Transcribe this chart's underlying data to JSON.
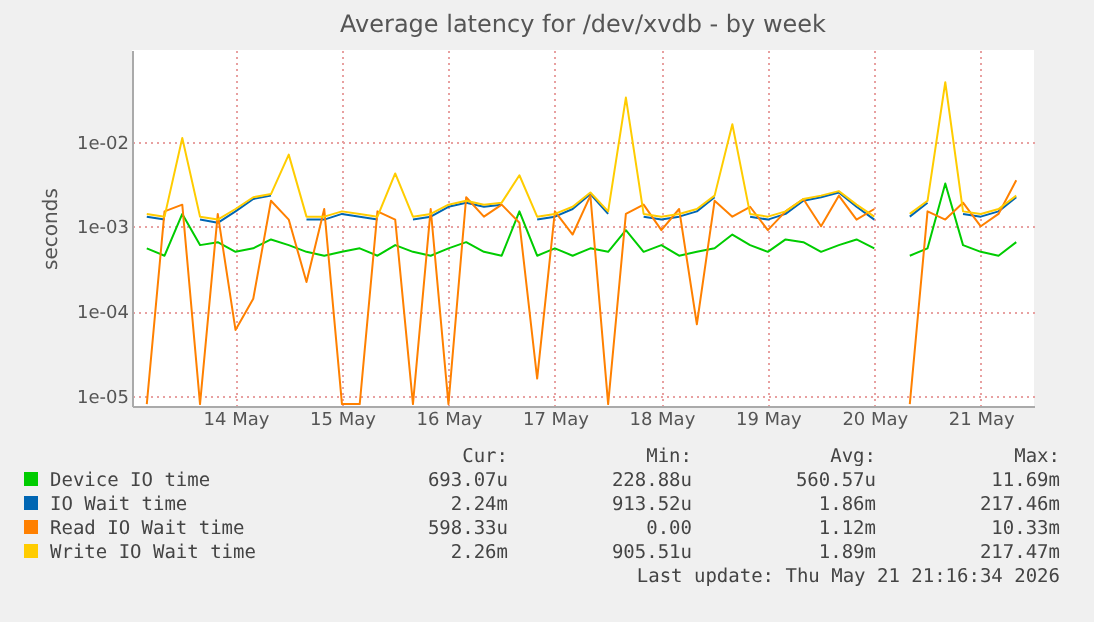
{
  "chart_data": {
    "type": "line",
    "title": "Average latency for /dev/xvdb - by week",
    "ylabel": "seconds",
    "log": "y",
    "grid": true,
    "legend": "bottom",
    "x": [
      "2026-05-13T16:00",
      "2026-05-13T20:00",
      "2026-05-14T00:00",
      "2026-05-14T04:00",
      "2026-05-14T08:00",
      "2026-05-14T12:00",
      "2026-05-14T16:00",
      "2026-05-14T20:00",
      "2026-05-15T00:00",
      "2026-05-15T04:00",
      "2026-05-15T08:00",
      "2026-05-15T12:00",
      "2026-05-15T16:00",
      "2026-05-15T20:00",
      "2026-05-16T00:00",
      "2026-05-16T04:00",
      "2026-05-16T08:00",
      "2026-05-16T12:00",
      "2026-05-16T16:00",
      "2026-05-16T20:00",
      "2026-05-17T00:00",
      "2026-05-17T04:00",
      "2026-05-17T08:00",
      "2026-05-17T12:00",
      "2026-05-17T16:00",
      "2026-05-17T20:00",
      "2026-05-18T00:00",
      "2026-05-18T04:00",
      "2026-05-18T08:00",
      "2026-05-18T12:00",
      "2026-05-18T16:00",
      "2026-05-18T20:00",
      "2026-05-19T00:00",
      "2026-05-19T04:00",
      "2026-05-19T08:00",
      "2026-05-19T12:00",
      "2026-05-19T16:00",
      "2026-05-19T20:00",
      "2026-05-20T00:00",
      "2026-05-20T04:00",
      "2026-05-20T08:00",
      "2026-05-20T12:00",
      "2026-05-20T16:00",
      "2026-05-20T20:00",
      "2026-05-21T00:00",
      "2026-05-21T04:00",
      "2026-05-21T08:00",
      "2026-05-21T12:00",
      "2026-05-21T16:00",
      "2026-05-21T20:00"
    ],
    "xlim": [
      "2026-05-13T12:40",
      "2026-05-22T00:00"
    ],
    "xticks": [
      {
        "value": "2026-05-14T12:00",
        "label": "14 May"
      },
      {
        "value": "2026-05-15T12:00",
        "label": "15 May"
      },
      {
        "value": "2026-05-16T12:00",
        "label": "16 May"
      },
      {
        "value": "2026-05-17T12:00",
        "label": "17 May"
      },
      {
        "value": "2026-05-18T12:00",
        "label": "18 May"
      },
      {
        "value": "2026-05-19T12:00",
        "label": "19 May"
      },
      {
        "value": "2026-05-20T12:00",
        "label": "20 May"
      },
      {
        "value": "2026-05-21T12:00",
        "label": "21 May"
      }
    ],
    "ylim": [
      7.6e-06,
      0.12
    ],
    "yticks": [
      {
        "value": 1e-05,
        "label": "1e-05"
      },
      {
        "value": 0.0001,
        "label": "1e-04"
      },
      {
        "value": 0.001,
        "label": "1e-03"
      },
      {
        "value": 0.01,
        "label": "1e-02"
      }
    ],
    "series": [
      {
        "name": "Device IO time",
        "color": "#00cc00",
        "values": [
          0.00055,
          0.00045,
          0.0014,
          0.0006,
          0.00065,
          0.0005,
          0.00055,
          0.0007,
          0.0006,
          0.0005,
          0.00045,
          0.0005,
          0.00055,
          0.00045,
          0.0006,
          0.0005,
          0.00045,
          0.00055,
          0.00065,
          0.0005,
          0.00045,
          0.0015,
          0.00045,
          0.00055,
          0.00045,
          0.00055,
          0.0005,
          0.0009,
          0.0005,
          0.0006,
          0.00045,
          0.0005,
          0.00055,
          0.0008,
          0.0006,
          0.0005,
          0.0007,
          0.00065,
          0.0005,
          0.0006,
          0.0007,
          0.00055,
          null,
          0.00045,
          0.00055,
          0.0032,
          0.0006,
          0.0005,
          0.00045,
          0.00065
        ]
      },
      {
        "name": "IO Wait time",
        "color": "#0066b3",
        "values": [
          0.0013,
          0.0012,
          null,
          0.0012,
          0.0011,
          0.0015,
          0.0021,
          0.0023,
          null,
          0.0012,
          0.0012,
          0.0014,
          0.0013,
          0.0012,
          null,
          0.0012,
          0.0013,
          0.0017,
          0.0019,
          0.0017,
          0.0018,
          null,
          0.0012,
          0.0013,
          0.0016,
          0.0024,
          0.0014,
          null,
          0.0013,
          0.0012,
          0.0013,
          0.0015,
          0.0022,
          null,
          0.0013,
          0.0012,
          0.0014,
          0.002,
          0.0022,
          0.0025,
          0.0017,
          0.0012,
          null,
          0.0013,
          0.0019,
          null,
          0.0014,
          0.0013,
          0.0015,
          0.0022
        ]
      },
      {
        "name": "Read IO Wait time",
        "color": "#ff8000",
        "values": [
          8e-06,
          0.0015,
          0.0018,
          8e-06,
          0.0014,
          6e-05,
          0.00014,
          0.002,
          0.0012,
          0.00022,
          0.0016,
          8e-06,
          8e-06,
          0.0015,
          0.0012,
          8e-06,
          0.0016,
          8e-06,
          0.0022,
          0.0013,
          0.0018,
          0.0011,
          1.6e-05,
          0.0015,
          0.0008,
          0.0023,
          8e-06,
          0.0014,
          0.0018,
          0.0009,
          0.0016,
          7e-05,
          0.002,
          0.0013,
          0.0017,
          0.0009,
          0.0015,
          0.0021,
          0.001,
          0.0023,
          0.0012,
          0.0016,
          null,
          8e-06,
          0.0015,
          0.0012,
          0.0019,
          0.001,
          0.0014,
          0.0035
        ]
      },
      {
        "name": "Write IO Wait time",
        "color": "#ffcc00",
        "values": [
          0.0014,
          0.0013,
          0.011,
          0.0013,
          0.0012,
          0.0016,
          0.0022,
          0.0024,
          0.007,
          0.0013,
          0.0013,
          0.0015,
          0.0014,
          0.0013,
          0.0042,
          0.0013,
          0.0014,
          0.0018,
          0.002,
          0.0018,
          0.0019,
          0.004,
          0.0013,
          0.0014,
          0.0017,
          0.0025,
          0.0015,
          0.033,
          0.0014,
          0.0013,
          0.0014,
          0.0016,
          0.0023,
          0.016,
          0.0014,
          0.0013,
          0.0015,
          0.0021,
          0.0023,
          0.0026,
          0.0018,
          0.0013,
          null,
          0.0014,
          0.002,
          0.05,
          0.0015,
          0.0014,
          0.0016,
          0.0023
        ]
      }
    ],
    "annotations": [
      "Cur:",
      "Min:",
      "Avg:",
      "Max:",
      "693.07u",
      "228.88u",
      "560.57u",
      "11.69m",
      "2.24m",
      "913.52u",
      "1.86m",
      "217.46m",
      "598.33u",
      "0.00",
      "1.12m",
      "10.33m",
      "2.26m",
      "905.51u",
      "1.89m",
      "217.47m",
      "Last update: Thu May 21 21:16:34 2026"
    ]
  }
}
